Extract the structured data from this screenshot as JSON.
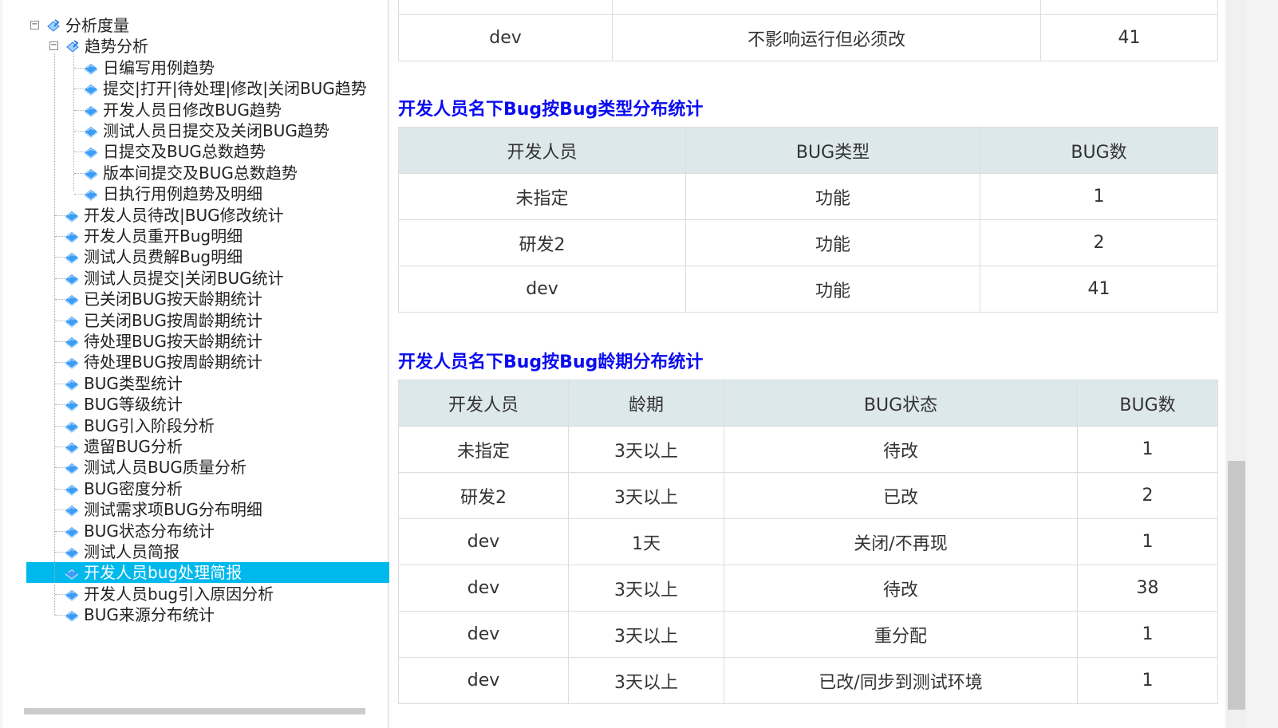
{
  "tree": {
    "root": "分析度量",
    "trend": "趋势分析",
    "trend_items": [
      "日编写用例趋势",
      "提交|打开|待处理|修改|关闭BUG趋势",
      "开发人员日修改BUG趋势",
      "测试人员日提交及关闭BUG趋势",
      "日提交及BUG总数趋势",
      "版本间提交及BUG总数趋势",
      "日执行用例趋势及明细"
    ],
    "items": [
      "开发人员待改|BUG修改统计",
      "开发人员重开Bug明细",
      "测试人员费解Bug明细",
      "测试人员提交|关闭BUG统计",
      "已关闭BUG按天龄期统计",
      "已关闭BUG按周龄期统计",
      "待处理BUG按天龄期统计",
      "待处理BUG按周龄期统计",
      "BUG类型统计",
      "BUG等级统计",
      "BUG引入阶段分析",
      "遗留BUG分析",
      "测试人员BUG质量分析",
      "BUG密度分析",
      "测试需求项BUG分布明细",
      "BUG状态分布统计",
      "测试人员简报",
      "开发人员bug处理简报",
      "开发人员bug引入原因分析",
      "BUG来源分布统计"
    ],
    "selected": "开发人员bug处理简报",
    "selected_color": "#00b9ec"
  },
  "table1": {
    "rows": [
      [
        "dev",
        "不影响运行但必须改",
        "41"
      ]
    ]
  },
  "table2": {
    "title": "开发人员名下Bug按Bug类型分布统计",
    "headers": [
      "开发人员",
      "BUG类型",
      "BUG数"
    ],
    "rows": [
      [
        "未指定",
        "功能",
        "1"
      ],
      [
        "研发2",
        "功能",
        "2"
      ],
      [
        "dev",
        "功能",
        "41"
      ]
    ]
  },
  "table3": {
    "title": "开发人员名下Bug按Bug龄期分布统计",
    "headers": [
      "开发人员",
      "龄期",
      "BUG状态",
      "BUG数"
    ],
    "rows": [
      [
        "未指定",
        "3天以上",
        "待改",
        "1"
      ],
      [
        "研发2",
        "3天以上",
        "已改",
        "2"
      ],
      [
        "dev",
        "1天",
        "关闭/不再现",
        "1"
      ],
      [
        "dev",
        "3天以上",
        "待改",
        "38"
      ],
      [
        "dev",
        "3天以上",
        "重分配",
        "1"
      ],
      [
        "dev",
        "3天以上",
        "已改/同步到测试环境",
        "1"
      ]
    ]
  },
  "title_color": "#0b0bf0"
}
